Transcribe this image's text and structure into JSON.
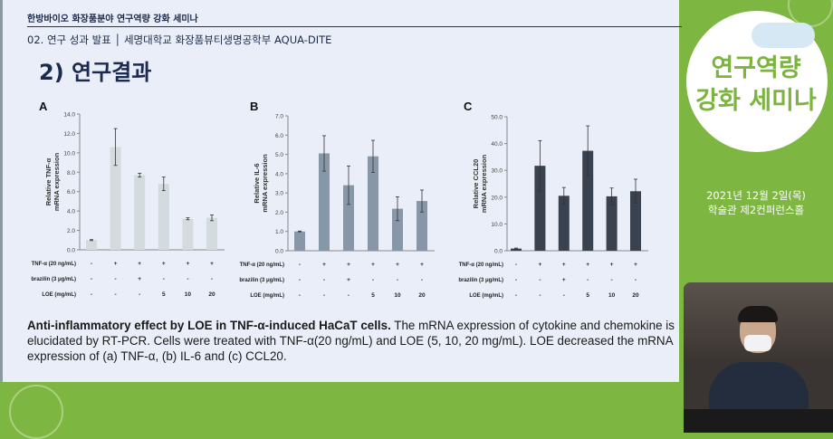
{
  "slide": {
    "header": "한방바이오 화장품분야 연구역량 강화 세미나",
    "subheader": "02. 연구 성과 발표 │ 세명대학교 화장품뷰티생명공학부 AQUA-DITE",
    "title": "2) 연구결과",
    "caption_bold": "Anti-inflammatory effect by LOE in TNF-α-induced HaCaT cells.",
    "caption_rest": " The mRNA expression of cytokine and chemokine is elucidated by RT-PCR. Cells were treated with TNF-α(20 ng/mL) and LOE (5, 10, 20 mg/mL). LOE decreased the mRNA expression of (a) TNF-α, (b) IL-6 and (c) CCL20."
  },
  "side_panel": {
    "title_line1": "연구역량",
    "title_line2": "강화 세미나",
    "date": "2021년 12월 2일(목)",
    "venue": "학술관 제2컨퍼런스홀"
  },
  "colors": {
    "background_green": "#7db640",
    "slide_bg": "#e9eef8",
    "accent_green": "#7cb43e"
  },
  "chart_data": [
    {
      "type": "bar",
      "panel": "A",
      "ylabel": [
        "Relative  TNF-α",
        "mRNA expression"
      ],
      "ylim": [
        0,
        14
      ],
      "yticks": [
        "0.0",
        "2.0",
        "4.0",
        "6.0",
        "8.0",
        "10.0",
        "12.0",
        "14.0"
      ],
      "color": "#d3dbde",
      "values": [
        1.0,
        10.6,
        7.7,
        6.8,
        3.2,
        3.3
      ],
      "errors": [
        0.05,
        1.9,
        0.2,
        0.7,
        0.1,
        0.3
      ],
      "rows": [
        {
          "label": "TNF-α (20 ng/mL)",
          "values": [
            "-",
            "+",
            "+",
            "+",
            "+",
            "+"
          ]
        },
        {
          "label": "brazilin (3 μg/mL)",
          "values": [
            "-",
            "-",
            "+",
            "-",
            "-",
            "-"
          ]
        },
        {
          "label": "LOE (mg/mL)",
          "values": [
            "-",
            "-",
            "-",
            "5",
            "10",
            "20"
          ]
        }
      ]
    },
    {
      "type": "bar",
      "panel": "B",
      "ylabel": [
        "Relative  IL-6",
        "mRNA expression"
      ],
      "ylim": [
        0,
        7
      ],
      "yticks": [
        "0.0",
        "1.0",
        "2.0",
        "3.0",
        "4.0",
        "5.0",
        "6.0",
        "7.0"
      ],
      "color": "#8797a8",
      "values": [
        1.0,
        5.05,
        3.4,
        4.9,
        2.18,
        2.58
      ],
      "errors": [
        0.02,
        0.92,
        1.0,
        0.83,
        0.62,
        0.57
      ],
      "rows": [
        {
          "label": "TNF-α (20 ng/mL)",
          "values": [
            "-",
            "+",
            "+",
            "+",
            "+",
            "+"
          ]
        },
        {
          "label": "brazilin (3 μg/mL)",
          "values": [
            "-",
            "-",
            "+",
            "-",
            "-",
            "-"
          ]
        },
        {
          "label": "LOE (mg/mL)",
          "values": [
            "-",
            "-",
            "-",
            "5",
            "10",
            "20"
          ]
        }
      ]
    },
    {
      "type": "bar",
      "panel": "C",
      "ylabel": [
        "Relative  CCL20",
        "mRNA expression"
      ],
      "ylim": [
        0,
        50
      ],
      "yticks": [
        "0.0",
        "10.0",
        "20.0",
        "30.0",
        "40.0",
        "50.0"
      ],
      "color": "#39424e",
      "values": [
        0.8,
        31.7,
        20.5,
        37.3,
        20.3,
        22.2
      ],
      "errors": [
        0.2,
        9.4,
        3.1,
        9.3,
        3.1,
        4.5
      ],
      "rows": [
        {
          "label": "TNF-α (20 ng/mL)",
          "values": [
            "-",
            "+",
            "+",
            "+",
            "+",
            "+"
          ]
        },
        {
          "label": "brazilin (3 μg/mL)",
          "values": [
            "-",
            "-",
            "+",
            "-",
            "-",
            "-"
          ]
        },
        {
          "label": "LOE (mg/mL)",
          "values": [
            "-",
            "-",
            "-",
            "5",
            "10",
            "20"
          ]
        }
      ]
    }
  ]
}
